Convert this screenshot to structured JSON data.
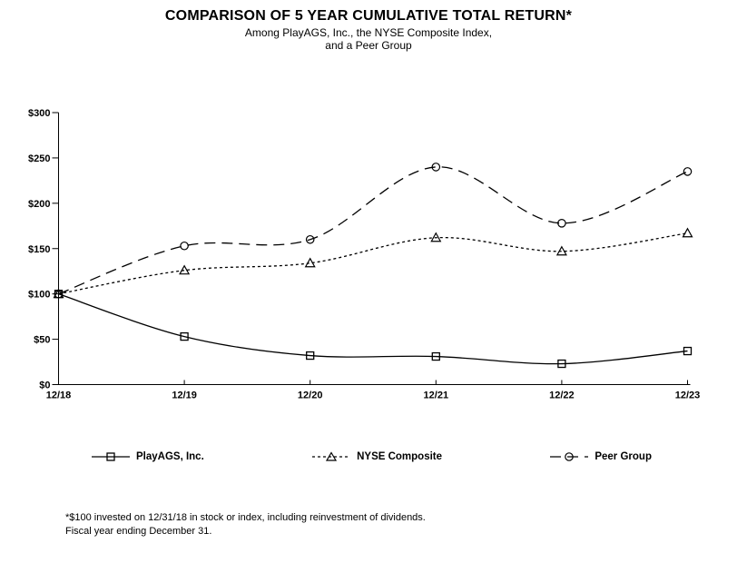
{
  "header": {
    "title": "COMPARISON OF 5 YEAR CUMULATIVE TOTAL RETURN*",
    "subtitle_line1": "Among PlayAGS, Inc., the NYSE Composite Index,",
    "subtitle_line2": "and a Peer Group"
  },
  "chart_data": {
    "type": "line",
    "title": "COMPARISON OF 5 YEAR CUMULATIVE TOTAL RETURN*",
    "categories": [
      "12/18",
      "12/19",
      "12/20",
      "12/21",
      "12/22",
      "12/23"
    ],
    "series": [
      {
        "name": "PlayAGS, Inc.",
        "marker": "square",
        "line_style": "solid",
        "values": [
          100,
          53,
          32,
          31,
          23,
          37
        ]
      },
      {
        "name": "NYSE Composite",
        "marker": "triangle",
        "line_style": "short-dash",
        "values": [
          100,
          126,
          134,
          162,
          147,
          167
        ]
      },
      {
        "name": "Peer Group",
        "marker": "circle",
        "line_style": "long-dash",
        "values": [
          100,
          153,
          160,
          240,
          178,
          235
        ]
      }
    ],
    "ylim": [
      0,
      300
    ],
    "ytick_step": 50,
    "ytick_prefix": "$",
    "xlabel": "",
    "ylabel": "",
    "grid": false,
    "legend_position": "bottom",
    "line_color": "#000000",
    "background_color": "#ffffff"
  },
  "footnote": {
    "line1": "*$100 invested on 12/31/18 in stock or index, including reinvestment of dividends.",
    "line2": "Fiscal year ending December 31."
  }
}
